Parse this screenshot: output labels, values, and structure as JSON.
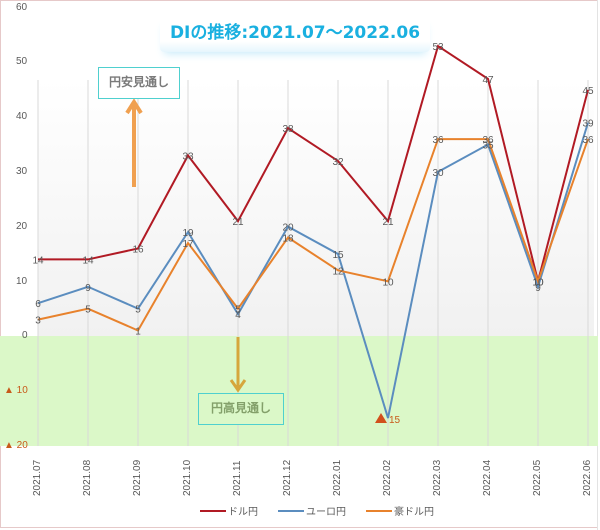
{
  "chart_data": {
    "type": "line",
    "title": "DIの推移:2021.07～2022.06",
    "categories": [
      "2021.07",
      "2021.08",
      "2021.09",
      "2021.10",
      "2021.11",
      "2021.12",
      "2022.01",
      "2022.02",
      "2022.03",
      "2022.04",
      "2022.05",
      "2022.06"
    ],
    "series": [
      {
        "name": "ドル円",
        "color": "#b11a24",
        "values": [
          14,
          14,
          16,
          33,
          21,
          38,
          32,
          21,
          53,
          47,
          10,
          45
        ]
      },
      {
        "name": "ユーロ円",
        "color": "#5b8dbf",
        "values": [
          6,
          9,
          5,
          19,
          4,
          20,
          15,
          -15,
          30,
          35,
          9,
          39
        ]
      },
      {
        "name": "豪ドル円",
        "color": "#e8822c",
        "values": [
          3,
          5,
          1,
          17,
          5,
          18,
          12,
          10,
          36,
          36,
          10,
          36
        ]
      }
    ],
    "xlabel": "",
    "ylabel": "",
    "ylim": [
      -20,
      60
    ],
    "yticks": [
      "60",
      "50",
      "40",
      "30",
      "20",
      "10",
      "0",
      "▲ 10",
      "▲ 20"
    ],
    "grid": "vertical",
    "legend_position": "bottom",
    "annotations": [
      {
        "text": "円安見通し",
        "region": "above zero",
        "arrow": "up"
      },
      {
        "text": "円高見通し",
        "region": "below zero",
        "arrow": "down"
      }
    ],
    "special_labels": [
      {
        "series": "ユーロ円",
        "category": "2022.02",
        "text": "▲15"
      }
    ]
  },
  "title": "DIの推移:2021.07～2022.06",
  "annotations": {
    "yen_weak": "円安見通し",
    "yen_strong": "円高見通し"
  },
  "legend": [
    "ドル円",
    "ユーロ円",
    "豪ドル円"
  ],
  "yaxis": {
    "t60": "60",
    "t50": "50",
    "t40": "40",
    "t30": "30",
    "t20": "20",
    "t10": "10",
    "t0": "0",
    "tn10": "▲ 10",
    "tn20": "▲ 20"
  },
  "xaxis": [
    "2021.07",
    "2021.08",
    "2021.09",
    "2021.10",
    "2021.11",
    "2021.12",
    "2022.01",
    "2022.02",
    "2022.03",
    "2022.04",
    "2022.05",
    "2022.06"
  ],
  "neg_label": {
    "marker": "▲",
    "value": "15"
  }
}
